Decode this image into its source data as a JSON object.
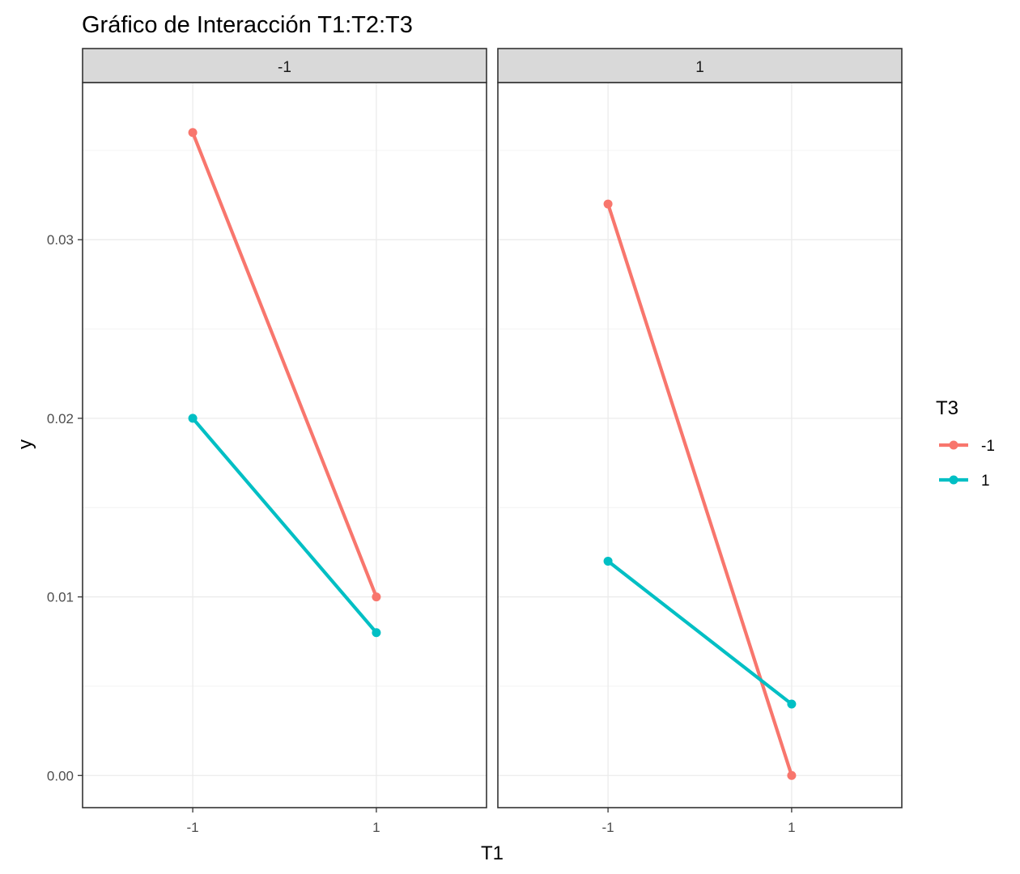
{
  "chart_data": {
    "type": "line",
    "title": "Gráfico de Interacción T1:T2:T3",
    "xlabel": "T1",
    "ylabel": "y",
    "x_categories": [
      "-1",
      "1"
    ],
    "ylim": [
      -0.0018,
      0.0388
    ],
    "y_ticks": [
      0.0,
      0.01,
      0.02,
      0.03
    ],
    "y_tick_labels": [
      "0.00",
      "0.01",
      "0.02",
      "0.03"
    ],
    "grid": true,
    "legend": {
      "title": "T3",
      "position": "right",
      "entries": [
        {
          "label": "-1",
          "color": "#F8766D"
        },
        {
          "label": "1",
          "color": "#00BFC4"
        }
      ]
    },
    "facets": [
      {
        "strip_label": "-1",
        "series": [
          {
            "name": "-1",
            "color": "#F8766D",
            "values": [
              0.036,
              0.01
            ]
          },
          {
            "name": "1",
            "color": "#00BFC4",
            "values": [
              0.02,
              0.008
            ]
          }
        ]
      },
      {
        "strip_label": "1",
        "series": [
          {
            "name": "-1",
            "color": "#F8766D",
            "values": [
              0.032,
              0.0
            ]
          },
          {
            "name": "1",
            "color": "#00BFC4",
            "values": [
              0.012,
              0.004
            ]
          }
        ]
      }
    ]
  }
}
